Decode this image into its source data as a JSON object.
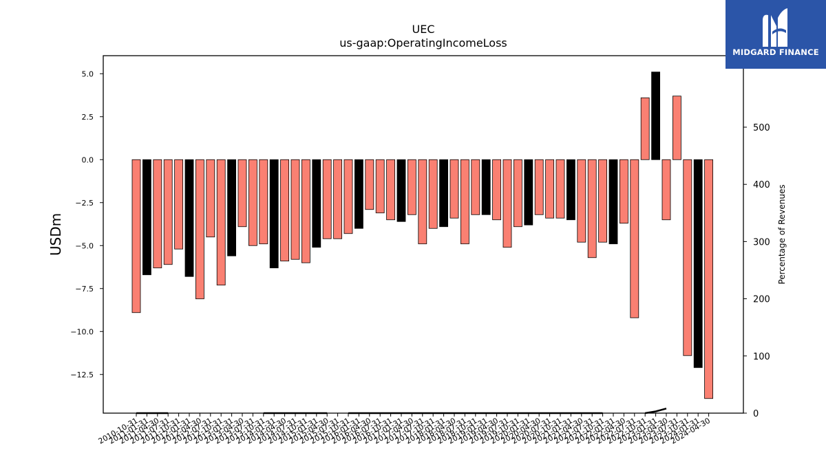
{
  "chart_data": {
    "type": "bar",
    "title": "UEC",
    "subtitle": "us-gaap:OperatingIncomeLoss",
    "ylabel": "USDm",
    "y2label": "Percentage of Revenues",
    "ylim": [
      -14.75,
      6.05
    ],
    "y2lim": [
      0,
      625
    ],
    "yticks": [
      "5.0",
      "2.5",
      "0.0",
      "−2.5",
      "−5.0",
      "−7.5",
      "−10.0",
      "−12.5"
    ],
    "y2ticks": [
      "0",
      "100",
      "200",
      "300",
      "400",
      "500"
    ],
    "categories": [
      "2010-10-31",
      "2011-01-31",
      "2011-04-30",
      "2011-07-31",
      "2011-10-31",
      "2012-01-31",
      "2012-04-30",
      "2012-07-31",
      "2012-10-31",
      "2013-01-31",
      "2013-04-30",
      "2013-07-31",
      "2013-10-31",
      "2014-01-31",
      "2014-04-30",
      "2014-07-31",
      "2014-10-31",
      "2015-01-31",
      "2015-04-30",
      "2015-07-31",
      "2015-10-31",
      "2016-01-31",
      "2016-04-30",
      "2016-07-31",
      "2016-10-31",
      "2017-01-31",
      "2017-04-30",
      "2017-07-31",
      "2017-10-31",
      "2018-01-31",
      "2018-04-30",
      "2018-07-31",
      "2018-10-31",
      "2019-01-31",
      "2019-04-30",
      "2019-07-31",
      "2019-10-31",
      "2020-01-31",
      "2020-04-30",
      "2020-07-31",
      "2020-10-31",
      "2021-01-31",
      "2021-04-30",
      "2021-07-31",
      "2021-10-31",
      "2022-01-31",
      "2022-04-30",
      "2022-07-31",
      "2022-10-31",
      "2023-01-31",
      "2023-04-30",
      "2023-07-31",
      "2023-10-31",
      "2024-01-31",
      "2024-04-30"
    ],
    "series": [
      {
        "values": [
          -8.9,
          -6.7,
          -6.3,
          -6.1,
          -5.2,
          -6.8,
          -8.1,
          -4.5,
          -7.3,
          -5.6,
          -3.9,
          -5.0,
          -4.9,
          -6.3,
          -5.9,
          -5.8,
          -6.0,
          -5.1,
          -4.6,
          -4.6,
          -4.3,
          -4.0,
          -2.9,
          -3.1,
          -3.5,
          -3.6,
          -3.2,
          -4.9,
          -4.0,
          -3.9,
          -3.4,
          -4.9,
          -3.2,
          -3.2,
          -3.5,
          -5.1,
          -3.9,
          -3.8,
          -3.2,
          -3.4,
          -3.4,
          -3.5,
          -4.8,
          -5.7,
          -4.8,
          -4.9,
          -3.7,
          -9.2,
          3.6,
          5.1,
          -3.5,
          3.7,
          -11.4,
          -12.1,
          -13.9
        ],
        "colors": [
          "#fa8072",
          "#000000",
          "#fa8072",
          "#fa8072",
          "#fa8072",
          "#000000",
          "#fa8072",
          "#fa8072",
          "#fa8072",
          "#000000",
          "#fa8072",
          "#fa8072",
          "#fa8072",
          "#000000",
          "#fa8072",
          "#fa8072",
          "#fa8072",
          "#000000",
          "#fa8072",
          "#fa8072",
          "#fa8072",
          "#000000",
          "#fa8072",
          "#fa8072",
          "#fa8072",
          "#000000",
          "#fa8072",
          "#fa8072",
          "#fa8072",
          "#000000",
          "#fa8072",
          "#fa8072",
          "#fa8072",
          "#000000",
          "#fa8072",
          "#fa8072",
          "#fa8072",
          "#000000",
          "#fa8072",
          "#fa8072",
          "#fa8072",
          "#000000",
          "#fa8072",
          "#fa8072",
          "#fa8072",
          "#000000",
          "#fa8072",
          "#fa8072",
          "#fa8072",
          "#000000",
          "#fa8072",
          "#fa8072",
          "#fa8072",
          "#000000",
          "#fa8072"
        ]
      }
    ],
    "pct_of_revenue": [
      0,
      0,
      0,
      0,
      null,
      null,
      null,
      null,
      null,
      null,
      null,
      null,
      0,
      0,
      0,
      0,
      0,
      0,
      0,
      null,
      0,
      0,
      0,
      0,
      0,
      0,
      0,
      0,
      0,
      0,
      0,
      0,
      0,
      0,
      0,
      0,
      0,
      0,
      0,
      0,
      0,
      0,
      0,
      0,
      0,
      null,
      null,
      null,
      0,
      3,
      8,
      null,
      0,
      null,
      0
    ],
    "line_color": "#000000",
    "grid": false
  },
  "logo": {
    "text": "MIDGARD FINANCE"
  }
}
